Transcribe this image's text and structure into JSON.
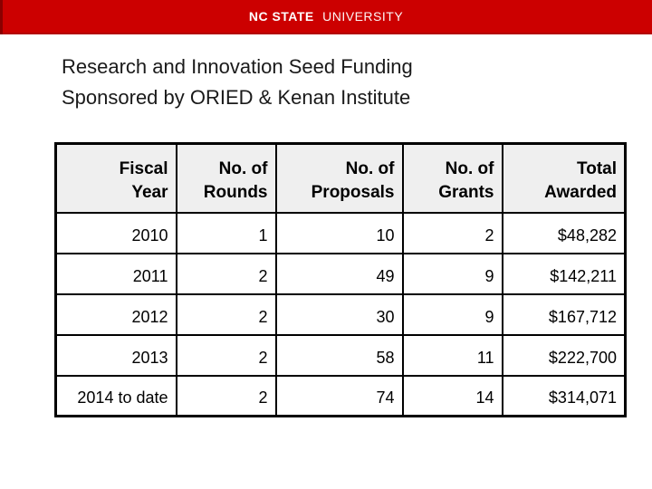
{
  "banner": {
    "logo_bold": "NC STATE",
    "logo_light": "UNIVERSITY",
    "bg_color": "#CC0000",
    "text_color": "#FFFFFF"
  },
  "title": {
    "line1": "Research and Innovation Seed Funding",
    "line2": "Sponsored by ORIED & Kenan Institute"
  },
  "table": {
    "headers": [
      {
        "line1": "Fiscal",
        "line2": "Year"
      },
      {
        "line1": "No. of",
        "line2": "Rounds"
      },
      {
        "line1": "No. of",
        "line2": "Proposals"
      },
      {
        "line1": "No. of",
        "line2": "Grants"
      },
      {
        "line1": "Total",
        "line2": "Awarded"
      }
    ],
    "rows": [
      [
        "2010",
        "1",
        "10",
        "2",
        "$48,282"
      ],
      [
        "2011",
        "2",
        "49",
        "9",
        "$142,211"
      ],
      [
        "2012",
        "2",
        "30",
        "9",
        "$167,712"
      ],
      [
        "2013",
        "2",
        "58",
        "11",
        "$222,700"
      ],
      [
        "2014 to date",
        "2",
        "74",
        "14",
        "$314,071"
      ]
    ],
    "header_bg": "#EFEFEF",
    "border_color": "#000000"
  }
}
